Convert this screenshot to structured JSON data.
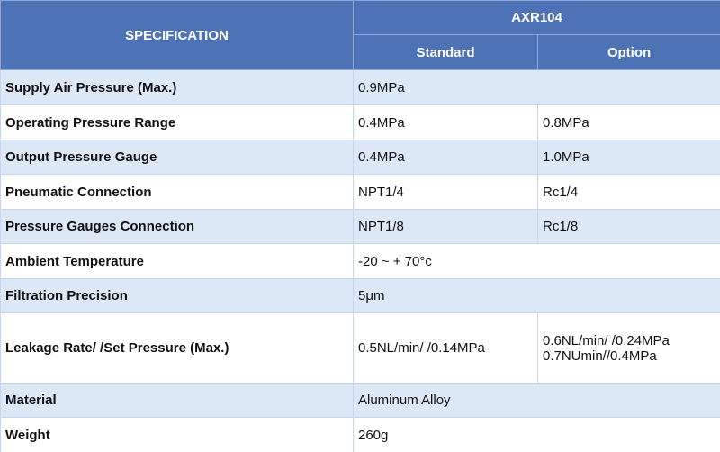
{
  "header": {
    "specification": "SPECIFICATION",
    "model": "AXR104",
    "standard": "Standard",
    "option": "Option"
  },
  "table": {
    "rows": [
      [
        "Supply Air Pressure (Max.)",
        "0.9MPa"
      ],
      [
        "Operating Pressure Range",
        "0.4MPa",
        "0.8MPa"
      ],
      [
        "Output Pressure Gauge",
        "0.4MPa",
        "1.0MPa"
      ],
      [
        "Pneumatic Connection",
        "NPT1/4",
        "Rc1/4"
      ],
      [
        "Pressure Gauges Connection",
        "NPT1/8",
        "Rc1/8"
      ],
      [
        "Ambient Temperature",
        "-20 ~ + 70°c"
      ],
      [
        "Filtration Precision",
        "5μm"
      ],
      [
        "Leakage Rate/ /Set Pressure (Max.)",
        "0.5NL/min/ /0.14MPa",
        [
          "0.6NL/min/ /0.24MPa",
          "0.7NUmin//0.4MPa"
        ]
      ],
      [
        "Material",
        "Aluminum Alloy"
      ],
      [
        "Weight",
        "260g"
      ]
    ]
  }
}
